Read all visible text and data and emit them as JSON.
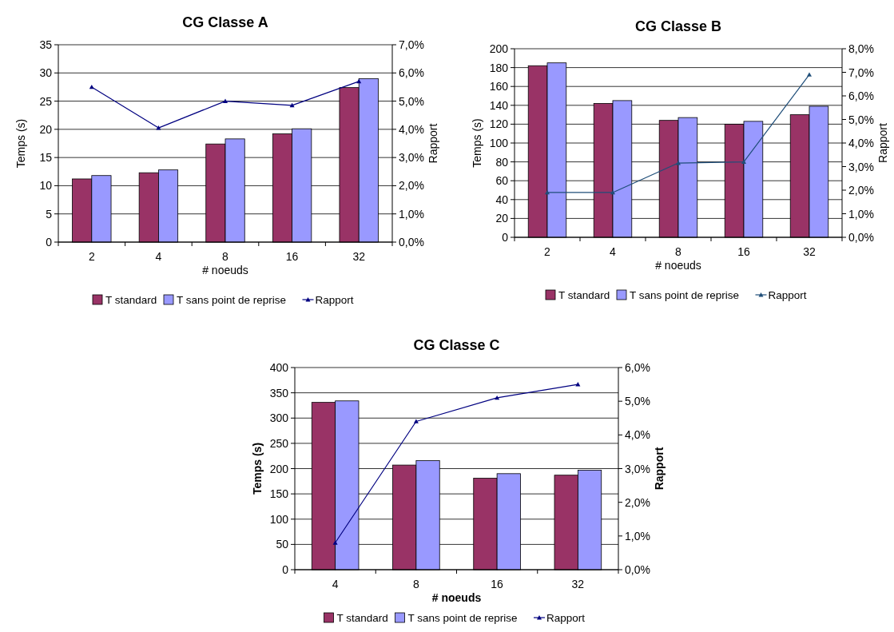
{
  "chart_data": [
    {
      "type": "bar",
      "title": "CG Classe A",
      "xlabel": "# noeuds",
      "ylabel": "Temps (s)",
      "y2label": "Rapport",
      "categories": [
        "2",
        "4",
        "8",
        "16",
        "32"
      ],
      "series": [
        {
          "name": "T standard",
          "color": "#993366",
          "values": [
            11.2,
            12.3,
            17.4,
            19.2,
            27.4
          ]
        },
        {
          "name": "T sans point de reprise",
          "color": "#9999ff",
          "values": [
            11.8,
            12.8,
            18.3,
            20.1,
            29.0
          ]
        },
        {
          "name": "Rapport",
          "type": "line",
          "axis": "y2",
          "color": "#000080",
          "marker": "triangle",
          "values": [
            5.5,
            4.05,
            5.0,
            4.85,
            5.7
          ]
        }
      ],
      "ylim": [
        0,
        35
      ],
      "yticks": [
        0,
        5,
        10,
        15,
        20,
        25,
        30,
        35
      ],
      "y2lim": [
        0,
        7
      ],
      "y2ticks": [
        {
          "value": 0,
          "label": "0,0%"
        },
        {
          "value": 1,
          "label": "1,0%"
        },
        {
          "value": 2,
          "label": "2,0%"
        },
        {
          "value": 3,
          "label": "3,0%"
        },
        {
          "value": 4,
          "label": "4,0%"
        },
        {
          "value": 5,
          "label": "5,0%"
        },
        {
          "value": 6,
          "label": "6,0%"
        },
        {
          "value": 7,
          "label": "7,0%"
        }
      ],
      "grid": "y",
      "legend": "bottom"
    },
    {
      "type": "bar",
      "title": "CG Classe B",
      "xlabel": "# noeuds",
      "ylabel": "Temps (s)",
      "y2label": "Rapport",
      "categories": [
        "2",
        "4",
        "8",
        "16",
        "32"
      ],
      "series": [
        {
          "name": "T standard",
          "color": "#993366",
          "values": [
            182,
            142,
            124,
            120,
            130
          ]
        },
        {
          "name": "T sans point de reprise",
          "color": "#9999ff",
          "values": [
            185,
            145,
            127,
            123,
            139
          ]
        },
        {
          "name": "Rapport",
          "type": "line",
          "axis": "y2",
          "color": "#1f4e79",
          "marker": "triangle",
          "values": [
            1.9,
            1.9,
            3.15,
            3.2,
            6.9
          ]
        }
      ],
      "ylim": [
        0,
        200
      ],
      "yticks": [
        0,
        20,
        40,
        60,
        80,
        100,
        120,
        140,
        160,
        180,
        200
      ],
      "y2lim": [
        0,
        8
      ],
      "y2ticks": [
        {
          "value": 0,
          "label": "0,0%"
        },
        {
          "value": 1,
          "label": "1,0%"
        },
        {
          "value": 2,
          "label": "2,0%"
        },
        {
          "value": 3,
          "label": "3,0%"
        },
        {
          "value": 4,
          "label": "4,0%"
        },
        {
          "value": 5,
          "label": "5,0%"
        },
        {
          "value": 6,
          "label": "6,0%"
        },
        {
          "value": 7,
          "label": "7,0%"
        },
        {
          "value": 8,
          "label": "8,0%"
        }
      ],
      "grid": "y",
      "legend": "bottom"
    },
    {
      "type": "bar",
      "title": "CG Classe C",
      "xlabel": "# noeuds",
      "ylabel": "Temps (s)",
      "y2label": "Rapport",
      "categories": [
        "4",
        "8",
        "16",
        "32"
      ],
      "series": [
        {
          "name": "T standard",
          "color": "#993366",
          "values": [
            331,
            207,
            181,
            187
          ]
        },
        {
          "name": "T sans point de reprise",
          "color": "#9999ff",
          "values": [
            334,
            216,
            190,
            197
          ]
        },
        {
          "name": "Rapport",
          "type": "line",
          "axis": "y2",
          "color": "#000080",
          "marker": "triangle",
          "values": [
            0.8,
            4.4,
            5.1,
            5.5
          ]
        }
      ],
      "ylim": [
        0,
        400
      ],
      "yticks": [
        0,
        50,
        100,
        150,
        200,
        250,
        300,
        350,
        400
      ],
      "y2lim": [
        0,
        6
      ],
      "y2ticks": [
        {
          "value": 0,
          "label": "0,0%"
        },
        {
          "value": 1,
          "label": "1,0%"
        },
        {
          "value": 2,
          "label": "2,0%"
        },
        {
          "value": 3,
          "label": "3,0%"
        },
        {
          "value": 4,
          "label": "4,0%"
        },
        {
          "value": 5,
          "label": "5,0%"
        },
        {
          "value": 6,
          "label": "6,0%"
        }
      ],
      "grid": "y",
      "legend": "bottom"
    }
  ]
}
